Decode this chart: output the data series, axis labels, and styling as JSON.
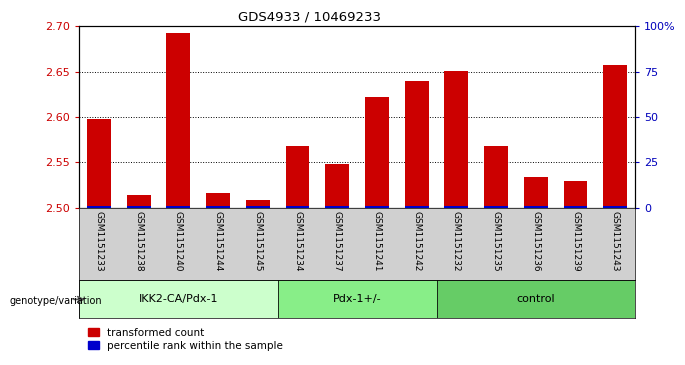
{
  "title": "GDS4933 / 10469233",
  "samples": [
    "GSM1151233",
    "GSM1151238",
    "GSM1151240",
    "GSM1151244",
    "GSM1151245",
    "GSM1151234",
    "GSM1151237",
    "GSM1151241",
    "GSM1151242",
    "GSM1151232",
    "GSM1151235",
    "GSM1151236",
    "GSM1151239",
    "GSM1151243"
  ],
  "red_values": [
    2.598,
    2.514,
    2.693,
    2.516,
    2.508,
    2.568,
    2.548,
    2.622,
    2.64,
    2.651,
    2.568,
    2.534,
    2.53,
    2.657
  ],
  "blue_values": [
    1,
    1,
    1,
    1,
    1,
    1,
    1,
    1,
    1,
    1,
    1,
    1,
    1,
    1
  ],
  "ylim_left": [
    2.5,
    2.7
  ],
  "ylim_right": [
    0,
    100
  ],
  "yticks_left": [
    2.5,
    2.55,
    2.6,
    2.65,
    2.7
  ],
  "yticks_right": [
    0,
    25,
    50,
    75,
    100
  ],
  "ytick_labels_right": [
    "0",
    "25",
    "50",
    "75",
    "100%"
  ],
  "bar_width": 0.6,
  "red_color": "#cc0000",
  "blue_color": "#0000cc",
  "ylabel_left_color": "#cc0000",
  "ylabel_right_color": "#0000bb",
  "xticklabel_bg": "#d0d0d0",
  "plot_bg_color": "#ffffff",
  "genotype_label": "genotype/variation",
  "legend_red": "transformed count",
  "legend_blue": "percentile rank within the sample",
  "group_ranges": [
    {
      "label": "IKK2-CA/Pdx-1",
      "start": 0,
      "end": 4,
      "color": "#ccffcc"
    },
    {
      "label": "Pdx-1+/-",
      "start": 5,
      "end": 8,
      "color": "#88ee88"
    },
    {
      "label": "control",
      "start": 9,
      "end": 13,
      "color": "#66cc66"
    }
  ],
  "grid_yticks": [
    2.55,
    2.6,
    2.65
  ]
}
